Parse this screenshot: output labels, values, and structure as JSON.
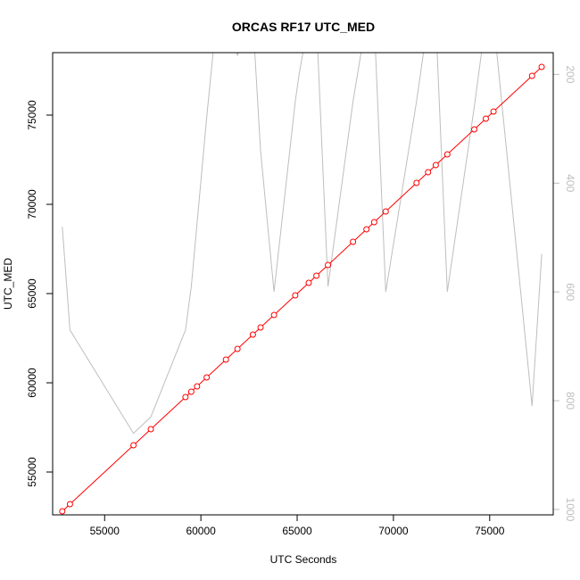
{
  "chart_data": {
    "type": "line",
    "title": "ORCAS RF17 UTC_MED",
    "xlabel": "UTC Seconds",
    "ylabel": "UTC_MED",
    "xlim": [
      52300,
      78300
    ],
    "ylim": [
      52600,
      78500
    ],
    "y2lim": [
      1010,
      160
    ],
    "y2_reversed": true,
    "x_ticks": [
      55000,
      60000,
      65000,
      70000,
      75000
    ],
    "y_ticks": [
      55000,
      60000,
      65000,
      70000,
      75000
    ],
    "y2_ticks": [
      200,
      400,
      600,
      800,
      1000
    ],
    "grid": false,
    "series": [
      {
        "type": "line-with-points",
        "color": "#ff0000",
        "x": [
          52800,
          53200,
          56500,
          57400,
          59200,
          59500,
          59800,
          60300,
          61300,
          61900,
          62700,
          63100,
          63800,
          64900,
          65600,
          66000,
          66600,
          67900,
          68600,
          69000,
          69600,
          71200,
          71800,
          72200,
          72800,
          74200,
          74800,
          75200,
          77200,
          77700
        ],
        "y": [
          52800,
          53200,
          56500,
          57400,
          59200,
          59500,
          59800,
          60300,
          61300,
          61900,
          62700,
          63100,
          63800,
          64900,
          65600,
          66000,
          66600,
          67900,
          68600,
          69000,
          69600,
          71200,
          71800,
          72200,
          72800,
          74200,
          74800,
          75200,
          77200,
          77700
        ]
      },
      {
        "type": "line",
        "axis": "right",
        "color": "#bebebe",
        "x": [
          52800,
          53200,
          56500,
          57400,
          59200,
          59500,
          60300,
          60800,
          61300,
          61900,
          62700,
          63100,
          63800,
          64900,
          65100,
          65600,
          66000,
          66600,
          67900,
          68600,
          69000,
          69600,
          71200,
          71800,
          72200,
          72800,
          74200,
          74800,
          75200,
          77200,
          77700
        ],
        "y": [
          480,
          670,
          860,
          830,
          670,
          590,
          280,
          100,
          100,
          165,
          100,
          340,
          600,
          250,
          200,
          100,
          100,
          590,
          250,
          100,
          100,
          600,
          250,
          100,
          100,
          600,
          260,
          100,
          100,
          810,
          530
        ]
      }
    ]
  }
}
